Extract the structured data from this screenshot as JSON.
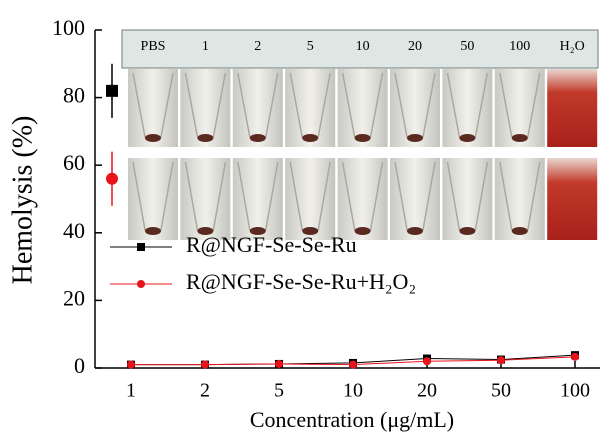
{
  "chart_data": {
    "type": "line",
    "y_label": "Hemolysis (%)",
    "x_label": "Concentration (μg/mL)",
    "categories": [
      "1",
      "2",
      "5",
      "10",
      "20",
      "50",
      "100"
    ],
    "series": [
      {
        "name": "R@NGF-Se-Se-Ru",
        "color": "#000000",
        "marker": "square",
        "values": [
          1,
          1,
          1.2,
          1.5,
          2.8,
          2.5,
          3.8
        ],
        "control": 82,
        "control_error": 8
      },
      {
        "name": "R@NGF-Se-Se-Ru+H₂O₂",
        "color": "#e8141b",
        "marker": "circle",
        "values": [
          1,
          1,
          1.2,
          1,
          2,
          2.3,
          3.3
        ],
        "control": 56,
        "control_error": 8
      }
    ],
    "ylim": [
      0,
      100
    ],
    "yticks": [
      0,
      20,
      40,
      60,
      80,
      100
    ],
    "inset_labels": [
      "PBS",
      "1",
      "2",
      "5",
      "10",
      "20",
      "50",
      "100",
      "H₂O"
    ]
  }
}
